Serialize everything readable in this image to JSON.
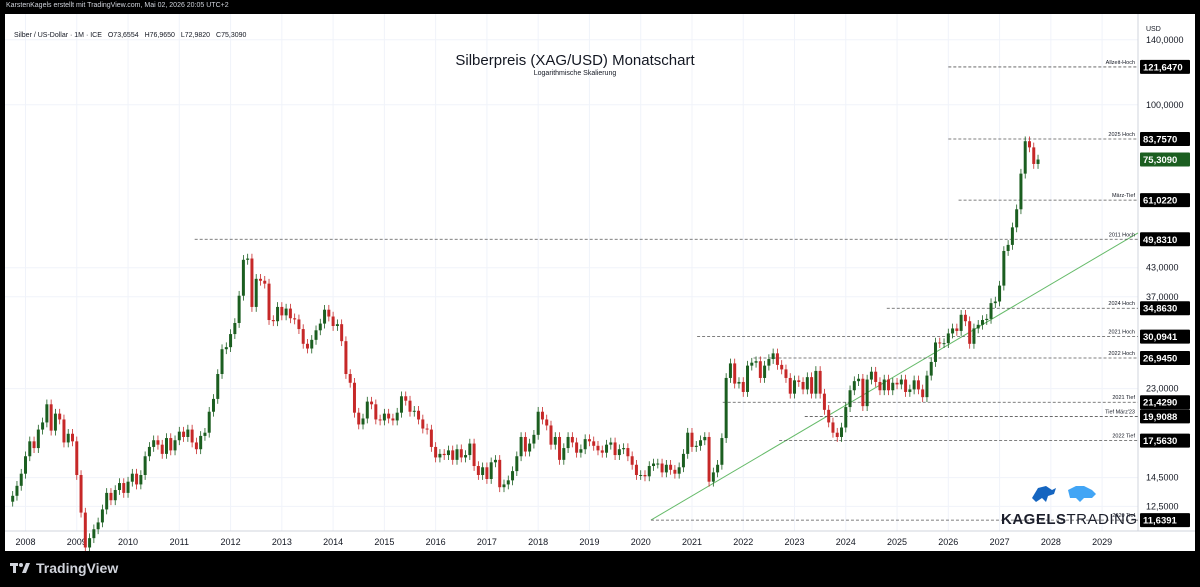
{
  "header": {
    "attribution": "KarstenKagels erstellt mit TradingView.com, Mai 02, 2026 20:05 UTC+2",
    "symbol_line": "Silber / US-Dollar · 1M · ICE",
    "ohlc": {
      "o": "O73,6554",
      "h": "H76,9650",
      "l": "L72,9820",
      "c": "C75,3090"
    }
  },
  "footer": {
    "brand": "TradingView"
  },
  "watermark": {
    "brand_bold": "KAGELS",
    "brand_thin": "TRADING"
  },
  "chart_data": {
    "type": "candlestick",
    "title": "Silberpreis (XAG/USD) Monatschart",
    "subtitle": "Logarithmische Skalierung",
    "currency": "USD",
    "scale": "log",
    "ylim": [
      11.0,
      160.0
    ],
    "xlim": [
      2007.6,
      2029.7
    ],
    "x_ticks": [
      "2008",
      "2009",
      "2010",
      "2011",
      "2012",
      "2013",
      "2014",
      "2015",
      "2016",
      "2017",
      "2018",
      "2019",
      "2020",
      "2021",
      "2022",
      "2023",
      "2024",
      "2025",
      "2026",
      "2027",
      "2028",
      "2029"
    ],
    "y_ticks": [
      {
        "value": 140,
        "label": "140,0000"
      },
      {
        "value": 100,
        "label": "100,0000"
      },
      {
        "value": 43,
        "label": "43,0000"
      },
      {
        "value": 37,
        "label": "37,0000"
      },
      {
        "value": 23,
        "label": "23,0000"
      },
      {
        "value": 14.5,
        "label": "14,5000"
      },
      {
        "value": 12.5,
        "label": "12,5000"
      }
    ],
    "current_price": {
      "value": 75.309,
      "label": "75,3090",
      "color": "#1b5e20"
    },
    "levels": [
      {
        "value": 121.647,
        "label": "121,6470",
        "name": "Allzeit-Hoch",
        "x0": 2026.0
      },
      {
        "value": 83.757,
        "label": "83,7570",
        "name": "2025 Hoch",
        "x0": 2026.0
      },
      {
        "value": 61.022,
        "label": "61,0220",
        "name": "März-Tief",
        "x0": 2026.2
      },
      {
        "value": 49.831,
        "label": "49,8310",
        "name": "2011 Hoch",
        "x0": 2011.3
      },
      {
        "value": 34.863,
        "label": "34,8630",
        "name": "2024 Hoch",
        "x0": 2024.8
      },
      {
        "value": 30.0941,
        "label": "30,0941",
        "name": "2021 Hoch",
        "x0": 2021.1
      },
      {
        "value": 26.945,
        "label": "26,9450",
        "name": "2022 Hoch",
        "x0": 2022.2
      },
      {
        "value": 21.429,
        "label": "21,4290",
        "name": "2021 Tief",
        "x0": 2021.6
      },
      {
        "value": 19.9088,
        "label": "19,9088",
        "name": "Tief März'23",
        "x0": 2023.2
      },
      {
        "value": 17.563,
        "label": "17,5630",
        "name": "2022 Tief",
        "x0": 2022.7
      },
      {
        "value": 11.6391,
        "label": "11,6391",
        "name": "2020 Tief",
        "x0": 2020.2
      }
    ],
    "trendline": {
      "from": [
        2020.2,
        11.64
      ],
      "to": [
        2029.7,
        51.5
      ]
    },
    "colors": {
      "up": "#1b5e20",
      "down": "#c62828",
      "trend": "#66bb6a"
    },
    "series": [
      {
        "name": "",
        "x0": 2007.75,
        "step": 0.0833333,
        "close": [
          13.2,
          13.9,
          14.8,
          16.2,
          17.5,
          16.9,
          18.6,
          19.3,
          21.2,
          18.5,
          20.2,
          19.6,
          17.4,
          18.2,
          17.5,
          14.7,
          12.1,
          10.1,
          10.6,
          11.1,
          11.5,
          12.3,
          13.4,
          12.9,
          13.6,
          14.1,
          13.4,
          14.2,
          14.8,
          14.0,
          14.7,
          16.2,
          17.0,
          17.6,
          17.2,
          16.4,
          17.8,
          16.7,
          17.6,
          18.4,
          17.9,
          18.6,
          17.4,
          16.8,
          18.0,
          18.3,
          20.4,
          21.8,
          24.8,
          28.2,
          28.5,
          30.5,
          32.3,
          37.2,
          44.8,
          45.1,
          35.1,
          40.6,
          40.2,
          39.6,
          32.8,
          32.6,
          35.1,
          33.6,
          34.8,
          33.1,
          32.9,
          31.3,
          29.0,
          28.3,
          29.6,
          31.1,
          32.2,
          34.6,
          33.4,
          31.8,
          32.1,
          29.4,
          24.8,
          23.7,
          20.3,
          19.1,
          19.7,
          21.5,
          21.2,
          19.6,
          19.5,
          20.2,
          19.7,
          19.5,
          20.3,
          22.1,
          21.6,
          20.4,
          20.5,
          19.6,
          18.7,
          18.6,
          17.0,
          16.1,
          16.4,
          16.3,
          16.7,
          15.9,
          16.8,
          16.1,
          16.3,
          17.3,
          15.4,
          14.7,
          15.3,
          14.4,
          15.7,
          15.9,
          13.8,
          14.0,
          14.3,
          15.0,
          16.2,
          17.9,
          16.6,
          17.3,
          18.1,
          20.4,
          19.6,
          19.0,
          17.2,
          17.9,
          15.9,
          16.9,
          17.9,
          17.4,
          16.5,
          16.8,
          17.7,
          17.5,
          17.1,
          16.7,
          16.5,
          17.2,
          17.4,
          16.3,
          16.8,
          16.9,
          16.2,
          15.5,
          14.7,
          14.7,
          14.6,
          15.4,
          15.6,
          15.6,
          14.9,
          15.5,
          15.1,
          14.8,
          15.3,
          16.4,
          18.3,
          17.0,
          17.1,
          17.6,
          17.9,
          14.2,
          14.9,
          15.5,
          17.8,
          24.3,
          26.2,
          23.6,
          23.8,
          22.6,
          25.9,
          26.3,
          26.5,
          24.3,
          25.9,
          26.8,
          27.6,
          26.0,
          25.4,
          24.3,
          22.4,
          24.0,
          23.8,
          22.9,
          24.4,
          22.4,
          25.2,
          22.4,
          20.6,
          19.3,
          18.3,
          17.9,
          18.8,
          20.9,
          22.8,
          23.9,
          24.2,
          21.0,
          24.1,
          25.1,
          23.8,
          22.8,
          24.1,
          22.8,
          23.7,
          23.5,
          24.1,
          22.6,
          22.9,
          24.0,
          22.9,
          22.0,
          24.6,
          26.4,
          29.2,
          29.1,
          29.1,
          30.6,
          31.4,
          31.0,
          33.7,
          32.6,
          29.0,
          31.4,
          32.0,
          32.8,
          33.0,
          35.8,
          36.1,
          39.2,
          46.9,
          48.4,
          53.0,
          58.2,
          70.0,
          82.8,
          80.2,
          73.6,
          75.3
        ]
      }
    ]
  }
}
